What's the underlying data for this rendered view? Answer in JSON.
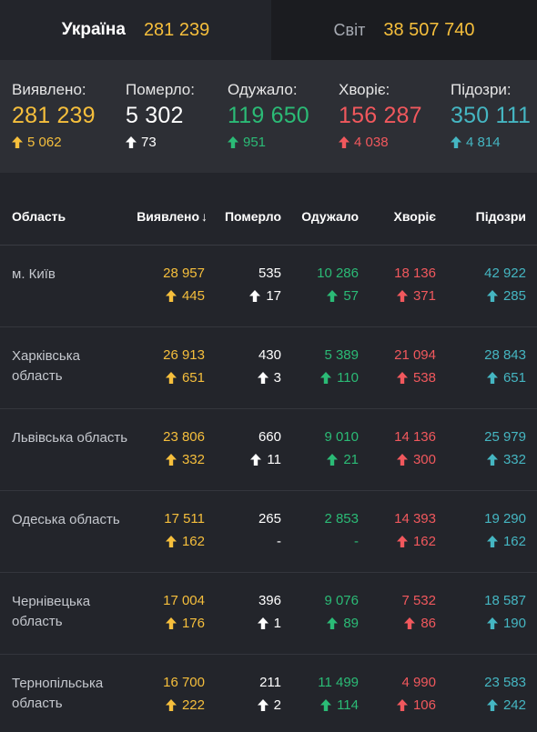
{
  "tabs": {
    "ukraine": {
      "label": "Україна",
      "value": "281 239"
    },
    "world": {
      "label": "Світ",
      "value": "38 507 740"
    }
  },
  "summary": [
    {
      "label": "Виявлено:",
      "value": "281 239",
      "delta": "5 062",
      "color": "#f6bf3c"
    },
    {
      "label": "Померло:",
      "value": "5 302",
      "delta": "73",
      "color": "#ffffff"
    },
    {
      "label": "Одужало:",
      "value": "119 650",
      "delta": "951",
      "color": "#2bbb76"
    },
    {
      "label": "Хворіє:",
      "value": "156 287",
      "delta": "4 038",
      "color": "#f1585d"
    },
    {
      "label": "Підозри:",
      "value": "350 111",
      "delta": "4 814",
      "color": "#45b6c2"
    }
  ],
  "table": {
    "headers": [
      "Область",
      "Виявлено",
      "Померло",
      "Одужало",
      "Хворіє",
      "Підозри"
    ],
    "sort_indicator": "↓",
    "rows": [
      {
        "region": "м. Київ",
        "confirmed": "28 957",
        "confirmed_delta": "445",
        "deaths": "535",
        "deaths_delta": "17",
        "recovered": "10 286",
        "recovered_delta": "57",
        "sick": "18 136",
        "sick_delta": "371",
        "suspected": "42 922",
        "suspected_delta": "285"
      },
      {
        "region": "Харківська область",
        "confirmed": "26 913",
        "confirmed_delta": "651",
        "deaths": "430",
        "deaths_delta": "3",
        "recovered": "5 389",
        "recovered_delta": "110",
        "sick": "21 094",
        "sick_delta": "538",
        "suspected": "28 843",
        "suspected_delta": "651"
      },
      {
        "region": "Львівська область",
        "confirmed": "23 806",
        "confirmed_delta": "332",
        "deaths": "660",
        "deaths_delta": "11",
        "recovered": "9 010",
        "recovered_delta": "21",
        "sick": "14 136",
        "sick_delta": "300",
        "suspected": "25 979",
        "suspected_delta": "332"
      },
      {
        "region": "Одеська область",
        "confirmed": "17 511",
        "confirmed_delta": "162",
        "deaths": "265",
        "deaths_delta": "-",
        "recovered": "2 853",
        "recovered_delta": "-",
        "sick": "14 393",
        "sick_delta": "162",
        "suspected": "19 290",
        "suspected_delta": "162"
      },
      {
        "region": "Чернівецька область",
        "confirmed": "17 004",
        "confirmed_delta": "176",
        "deaths": "396",
        "deaths_delta": "1",
        "recovered": "9 076",
        "recovered_delta": "89",
        "sick": "7 532",
        "sick_delta": "86",
        "suspected": "18 587",
        "suspected_delta": "190"
      },
      {
        "region": "Тернопільська область",
        "confirmed": "16 700",
        "confirmed_delta": "222",
        "deaths": "211",
        "deaths_delta": "2",
        "recovered": "11 499",
        "recovered_delta": "114",
        "sick": "4 990",
        "sick_delta": "106",
        "suspected": "23 583",
        "suspected_delta": "242"
      }
    ]
  },
  "colors": {
    "confirmed": "#f6bf3c",
    "deaths": "#ffffff",
    "recovered": "#2bbb76",
    "sick": "#f1585d",
    "suspected": "#45b6c2"
  },
  "icons": {
    "delta": "arrow-up-icon",
    "sort": "sort-down-icon"
  }
}
